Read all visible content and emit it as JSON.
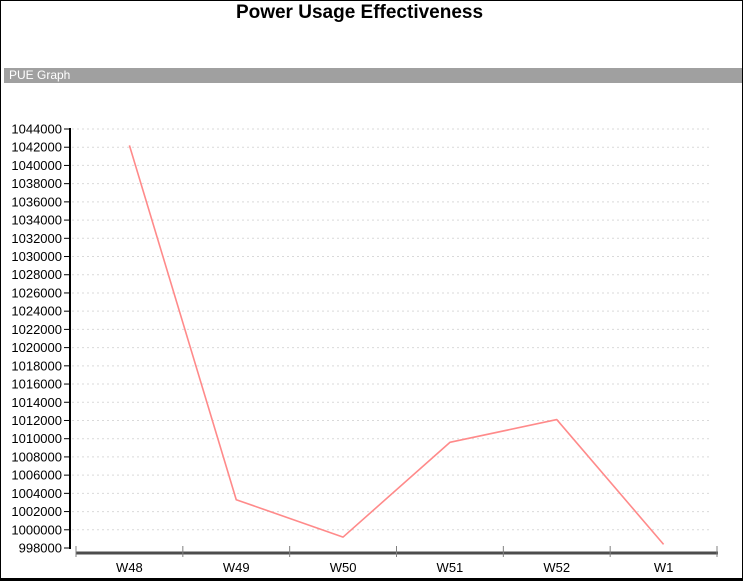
{
  "header_bar": {
    "label": "PUE Graph",
    "bg_color": "#a0a0a0",
    "text_color": "#ffffff"
  },
  "colors": {
    "line": "#ff8a8a",
    "grid": "#d9d9d9",
    "y_axis": "#000000",
    "x_axis": "#4d4d4d",
    "x_tick": "#808080",
    "label_text": "#000000"
  },
  "chart_data": {
    "type": "line",
    "title": "Power Usage Effectiveness",
    "xlabel": "",
    "ylabel": "",
    "categories": [
      "W48",
      "W49",
      "W50",
      "W51",
      "W52",
      "W1"
    ],
    "values": [
      1042200,
      1003300,
      999200,
      1009600,
      1012100,
      998400
    ],
    "ylim": [
      998000,
      1044000
    ],
    "ytick_step": 2000,
    "yticks": [
      998000,
      1000000,
      1002000,
      1004000,
      1006000,
      1008000,
      1010000,
      1012000,
      1014000,
      1016000,
      1018000,
      1020000,
      1022000,
      1024000,
      1026000,
      1028000,
      1030000,
      1032000,
      1034000,
      1036000,
      1038000,
      1040000,
      1042000,
      1044000
    ],
    "grid": "horizontal-dotted",
    "legend": "none"
  }
}
